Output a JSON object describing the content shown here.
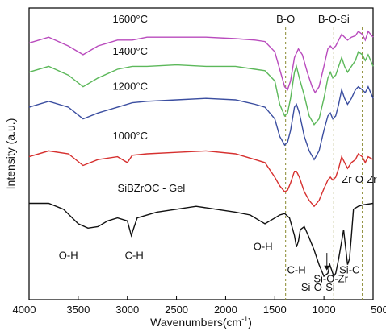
{
  "chart_data": {
    "type": "line",
    "xlabel": "Wavenumbers(cm",
    "xlabel_sup": "-1",
    "xlabel_close": ")",
    "ylabel": "Intensity (a.u.)",
    "xlim": [
      4000,
      500
    ],
    "xticks": [
      4000,
      3500,
      3000,
      2500,
      2000,
      1500,
      1000,
      500
    ],
    "grid": false,
    "yticks": false,
    "series": [
      {
        "name": "1600°C",
        "color": "#b94bbd",
        "points": [
          [
            4000,
            0.88
          ],
          [
            3800,
            0.9
          ],
          [
            3600,
            0.87
          ],
          [
            3450,
            0.84
          ],
          [
            3300,
            0.87
          ],
          [
            3100,
            0.89
          ],
          [
            2950,
            0.89
          ],
          [
            2800,
            0.9
          ],
          [
            2500,
            0.9
          ],
          [
            2200,
            0.9
          ],
          [
            1900,
            0.895
          ],
          [
            1700,
            0.89
          ],
          [
            1600,
            0.885
          ],
          [
            1500,
            0.85
          ],
          [
            1450,
            0.79
          ],
          [
            1400,
            0.73
          ],
          [
            1370,
            0.72
          ],
          [
            1340,
            0.75
          ],
          [
            1300,
            0.83
          ],
          [
            1260,
            0.86
          ],
          [
            1220,
            0.84
          ],
          [
            1170,
            0.78
          ],
          [
            1120,
            0.73
          ],
          [
            1090,
            0.71
          ],
          [
            1050,
            0.73
          ],
          [
            1000,
            0.8
          ],
          [
            960,
            0.86
          ],
          [
            935,
            0.87
          ],
          [
            910,
            0.86
          ],
          [
            880,
            0.87
          ],
          [
            850,
            0.89
          ],
          [
            820,
            0.91
          ],
          [
            790,
            0.9
          ],
          [
            760,
            0.89
          ],
          [
            720,
            0.9
          ],
          [
            680,
            0.905
          ],
          [
            650,
            0.92
          ],
          [
            610,
            0.91
          ],
          [
            580,
            0.89
          ],
          [
            550,
            0.92
          ],
          [
            500,
            0.9
          ]
        ]
      },
      {
        "name": "1400°C",
        "color": "#5cb85a",
        "points": [
          [
            4000,
            0.78
          ],
          [
            3800,
            0.8
          ],
          [
            3600,
            0.77
          ],
          [
            3450,
            0.73
          ],
          [
            3300,
            0.76
          ],
          [
            3100,
            0.79
          ],
          [
            2950,
            0.8
          ],
          [
            2800,
            0.8
          ],
          [
            2500,
            0.805
          ],
          [
            2200,
            0.8
          ],
          [
            1900,
            0.8
          ],
          [
            1700,
            0.79
          ],
          [
            1600,
            0.785
          ],
          [
            1500,
            0.75
          ],
          [
            1450,
            0.67
          ],
          [
            1400,
            0.63
          ],
          [
            1370,
            0.64
          ],
          [
            1340,
            0.69
          ],
          [
            1300,
            0.78
          ],
          [
            1280,
            0.8
          ],
          [
            1250,
            0.76
          ],
          [
            1200,
            0.7
          ],
          [
            1150,
            0.63
          ],
          [
            1100,
            0.6
          ],
          [
            1050,
            0.62
          ],
          [
            1000,
            0.69
          ],
          [
            960,
            0.76
          ],
          [
            935,
            0.78
          ],
          [
            910,
            0.76
          ],
          [
            880,
            0.77
          ],
          [
            850,
            0.8
          ],
          [
            820,
            0.83
          ],
          [
            790,
            0.8
          ],
          [
            760,
            0.78
          ],
          [
            720,
            0.8
          ],
          [
            680,
            0.82
          ],
          [
            650,
            0.85
          ],
          [
            610,
            0.84
          ],
          [
            580,
            0.82
          ],
          [
            550,
            0.84
          ],
          [
            500,
            0.8
          ]
        ]
      },
      {
        "name": "1200°C",
        "color": "#3b4ea0",
        "points": [
          [
            4000,
            0.66
          ],
          [
            3800,
            0.68
          ],
          [
            3600,
            0.66
          ],
          [
            3450,
            0.62
          ],
          [
            3300,
            0.64
          ],
          [
            3100,
            0.66
          ],
          [
            2950,
            0.675
          ],
          [
            2800,
            0.68
          ],
          [
            2500,
            0.685
          ],
          [
            2200,
            0.69
          ],
          [
            1900,
            0.685
          ],
          [
            1700,
            0.67
          ],
          [
            1600,
            0.66
          ],
          [
            1500,
            0.62
          ],
          [
            1450,
            0.56
          ],
          [
            1400,
            0.53
          ],
          [
            1370,
            0.54
          ],
          [
            1340,
            0.58
          ],
          [
            1300,
            0.66
          ],
          [
            1280,
            0.67
          ],
          [
            1250,
            0.64
          ],
          [
            1200,
            0.56
          ],
          [
            1150,
            0.51
          ],
          [
            1100,
            0.48
          ],
          [
            1050,
            0.51
          ],
          [
            1000,
            0.58
          ],
          [
            960,
            0.63
          ],
          [
            935,
            0.64
          ],
          [
            910,
            0.62
          ],
          [
            880,
            0.63
          ],
          [
            850,
            0.67
          ],
          [
            820,
            0.72
          ],
          [
            790,
            0.69
          ],
          [
            760,
            0.67
          ],
          [
            720,
            0.69
          ],
          [
            680,
            0.72
          ],
          [
            650,
            0.73
          ],
          [
            610,
            0.72
          ],
          [
            580,
            0.71
          ],
          [
            550,
            0.73
          ],
          [
            500,
            0.69
          ]
        ]
      },
      {
        "name": "1000°C",
        "color": "#d6302f",
        "points": [
          [
            4000,
            0.49
          ],
          [
            3800,
            0.51
          ],
          [
            3600,
            0.5
          ],
          [
            3450,
            0.46
          ],
          [
            3300,
            0.48
          ],
          [
            3100,
            0.49
          ],
          [
            3000,
            0.47
          ],
          [
            2950,
            0.495
          ],
          [
            2800,
            0.5
          ],
          [
            2500,
            0.505
          ],
          [
            2200,
            0.51
          ],
          [
            1900,
            0.5
          ],
          [
            1700,
            0.48
          ],
          [
            1600,
            0.47
          ],
          [
            1500,
            0.42
          ],
          [
            1450,
            0.39
          ],
          [
            1400,
            0.37
          ],
          [
            1370,
            0.375
          ],
          [
            1340,
            0.4
          ],
          [
            1300,
            0.44
          ],
          [
            1280,
            0.44
          ],
          [
            1250,
            0.42
          ],
          [
            1200,
            0.37
          ],
          [
            1150,
            0.34
          ],
          [
            1100,
            0.32
          ],
          [
            1050,
            0.34
          ],
          [
            1000,
            0.38
          ],
          [
            960,
            0.41
          ],
          [
            935,
            0.42
          ],
          [
            910,
            0.41
          ],
          [
            880,
            0.42
          ],
          [
            850,
            0.45
          ],
          [
            820,
            0.49
          ],
          [
            790,
            0.47
          ],
          [
            760,
            0.45
          ],
          [
            720,
            0.47
          ],
          [
            680,
            0.48
          ],
          [
            650,
            0.5
          ],
          [
            610,
            0.49
          ],
          [
            580,
            0.47
          ],
          [
            550,
            0.49
          ],
          [
            500,
            0.48
          ]
        ]
      },
      {
        "name": "SiBZrOC - Gel",
        "color": "#111111",
        "points": [
          [
            4000,
            0.33
          ],
          [
            3800,
            0.33
          ],
          [
            3650,
            0.31
          ],
          [
            3500,
            0.26
          ],
          [
            3400,
            0.245
          ],
          [
            3300,
            0.25
          ],
          [
            3200,
            0.27
          ],
          [
            3100,
            0.28
          ],
          [
            3000,
            0.27
          ],
          [
            2960,
            0.22
          ],
          [
            2930,
            0.25
          ],
          [
            2900,
            0.28
          ],
          [
            2700,
            0.3
          ],
          [
            2500,
            0.31
          ],
          [
            2300,
            0.32
          ],
          [
            2100,
            0.31
          ],
          [
            1900,
            0.3
          ],
          [
            1750,
            0.29
          ],
          [
            1650,
            0.27
          ],
          [
            1600,
            0.26
          ],
          [
            1550,
            0.27
          ],
          [
            1450,
            0.29
          ],
          [
            1400,
            0.295
          ],
          [
            1350,
            0.28
          ],
          [
            1300,
            0.22
          ],
          [
            1280,
            0.18
          ],
          [
            1260,
            0.2
          ],
          [
            1240,
            0.24
          ],
          [
            1200,
            0.25
          ],
          [
            1160,
            0.22
          ],
          [
            1100,
            0.17
          ],
          [
            1050,
            0.12
          ],
          [
            1000,
            0.08
          ],
          [
            960,
            0.09
          ],
          [
            940,
            0.12
          ],
          [
            920,
            0.1
          ],
          [
            900,
            0.08
          ],
          [
            880,
            0.09
          ],
          [
            850,
            0.14
          ],
          [
            820,
            0.2
          ],
          [
            800,
            0.24
          ],
          [
            780,
            0.18
          ],
          [
            760,
            0.12
          ],
          [
            740,
            0.14
          ],
          [
            720,
            0.22
          ],
          [
            700,
            0.31
          ],
          [
            650,
            0.32
          ],
          [
            600,
            0.325
          ],
          [
            500,
            0.33
          ]
        ]
      }
    ],
    "reference_lines": [
      {
        "x": 1390,
        "label": "B-O"
      },
      {
        "x": 900,
        "label": "B-O-Si"
      },
      {
        "x": 610,
        "label": ""
      }
    ],
    "series_labels": [
      {
        "text": "1600°C",
        "x": 3150,
        "y": 0.95
      },
      {
        "text": "1400°C",
        "x": 3150,
        "y": 0.84
      },
      {
        "text": "1200°C",
        "x": 3150,
        "y": 0.72
      },
      {
        "text": "1000°C",
        "x": 3150,
        "y": 0.55
      },
      {
        "text": "SiBZrOC - Gel",
        "x": 3100,
        "y": 0.37
      }
    ],
    "annotations": [
      {
        "text": "O-H",
        "x": 3600,
        "y": 0.14
      },
      {
        "text": "C-H",
        "x": 2930,
        "y": 0.14
      },
      {
        "text": "O-H",
        "x": 1620,
        "y": 0.17
      },
      {
        "text": "C-H",
        "x": 1280,
        "y": 0.09
      },
      {
        "text": "Si-O-Si",
        "x": 1060,
        "y": 0.03
      },
      {
        "text": "Si-O-Zr",
        "x": 930,
        "y": 0.06
      },
      {
        "text": "Si-C",
        "x": 740,
        "y": 0.09
      },
      {
        "text": "Zr-O-Zr",
        "x": 640,
        "y": 0.4
      }
    ],
    "arrow": {
      "x": 970,
      "y_top": 0.16,
      "y_bottom": 0.1
    }
  }
}
